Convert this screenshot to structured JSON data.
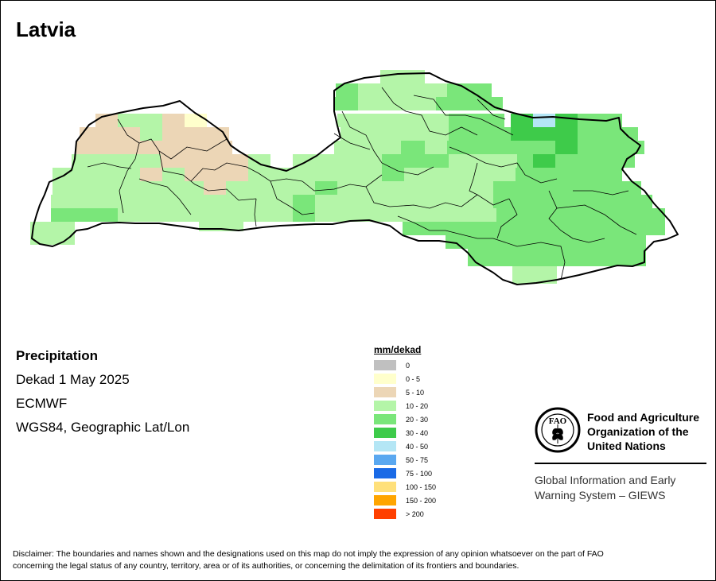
{
  "map": {
    "title": "Latvia",
    "variable": "Precipitation",
    "period": "Dekad 1 May 2025",
    "source": "ECMWF",
    "projection": "WGS84, Geographic Lat/Lon"
  },
  "legend": {
    "title": "mm/dekad",
    "items": [
      {
        "label": "0",
        "color": "#c0c0c0"
      },
      {
        "label": "0 - 5",
        "color": "#ffffcc"
      },
      {
        "label": "5 - 10",
        "color": "#ecd6b6"
      },
      {
        "label": "10 - 20",
        "color": "#b4f5a8"
      },
      {
        "label": "20 - 30",
        "color": "#7ae67a"
      },
      {
        "label": "30 - 40",
        "color": "#3ecb4a"
      },
      {
        "label": "40 - 50",
        "color": "#b4e6f5"
      },
      {
        "label": "50 - 75",
        "color": "#5aa8f0"
      },
      {
        "label": "75 - 100",
        "color": "#1a6ae6"
      },
      {
        "label": "100 - 150",
        "color": "#ffe07a"
      },
      {
        "label": "150 - 200",
        "color": "#ffa500"
      },
      {
        "label": "> 200",
        "color": "#ff4000"
      }
    ]
  },
  "fao": {
    "name_line1": "Food and Agriculture",
    "name_line2": "Organization of the",
    "name_line3": "United Nations",
    "logo_text": "FAO",
    "logo_motto": "FIAT PANIS",
    "giews_line1": "Global Information and Early",
    "giews_line2": "Warning System – GIEWS"
  },
  "disclaimer": {
    "line1": "Disclaimer: The boundaries and names shown and the designations used on this map do not imply the expression of any opinion whatsoever on the part of FAO",
    "line2": "concerning the legal status of any country, territory, area or of its authorities, or concerning the delimitation of its frontiers and boundaries."
  }
}
